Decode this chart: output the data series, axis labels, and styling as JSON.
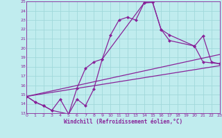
{
  "xlabel": "Windchill (Refroidissement éolien,°C)",
  "xlim": [
    0,
    23
  ],
  "ylim": [
    13,
    25
  ],
  "xticks": [
    0,
    1,
    2,
    3,
    4,
    5,
    6,
    7,
    8,
    9,
    10,
    11,
    12,
    13,
    14,
    15,
    16,
    17,
    18,
    19,
    20,
    21,
    22,
    23
  ],
  "yticks": [
    13,
    14,
    15,
    16,
    17,
    18,
    19,
    20,
    21,
    22,
    23,
    24,
    25
  ],
  "bg_color": "#c0ecee",
  "grid_color": "#a0d8da",
  "line_color": "#882299",
  "markersize": 2.5,
  "linewidth": 0.9,
  "line1_x": [
    0,
    1,
    2,
    3,
    4,
    5,
    6,
    7,
    8,
    9,
    10,
    11,
    12,
    13,
    14,
    15,
    16,
    17,
    20,
    21,
    22,
    23
  ],
  "line1_y": [
    14.8,
    14.2,
    13.8,
    13.3,
    14.5,
    12.9,
    14.5,
    13.8,
    15.6,
    18.8,
    21.4,
    23.0,
    23.3,
    23.0,
    24.85,
    24.9,
    22.0,
    20.8,
    20.2,
    21.3,
    18.5,
    18.3
  ],
  "line2_x": [
    0,
    1,
    2,
    3,
    5,
    6,
    7,
    8,
    9,
    14,
    15,
    16,
    17,
    20,
    21,
    23
  ],
  "line2_y": [
    14.8,
    14.2,
    13.8,
    13.3,
    12.9,
    15.7,
    17.8,
    18.5,
    18.8,
    24.85,
    24.9,
    22.0,
    21.4,
    20.2,
    18.5,
    18.3
  ],
  "line3_x": [
    0,
    23
  ],
  "line3_y": [
    14.8,
    19.3
  ],
  "line4_x": [
    0,
    23
  ],
  "line4_y": [
    14.8,
    18.1
  ]
}
